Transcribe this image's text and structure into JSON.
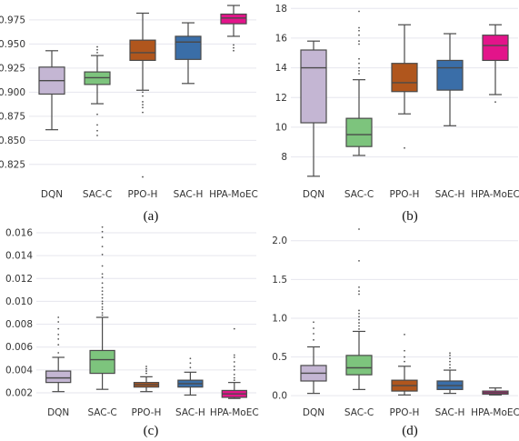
{
  "chart_data": [
    {
      "type": "box",
      "panel_label": "(a)",
      "categories": [
        "DQN",
        "SAC-C",
        "PPO-H",
        "SAC-H",
        "HPA-MoEC"
      ],
      "colors": [
        "#c4b6d3",
        "#7dc47d",
        "#b0561d",
        "#3a6ea8",
        "#e3148a"
      ],
      "ylim": [
        0.805,
        0.99
      ],
      "yticks": [
        0.825,
        0.85,
        0.875,
        0.9,
        0.925,
        0.95,
        0.975
      ],
      "ytick_labels": [
        "0.825",
        "0.850",
        "0.875",
        "0.900",
        "0.925",
        "0.950",
        "0.975"
      ],
      "grid": true,
      "boxes": [
        {
          "min": 0.861,
          "q1": 0.898,
          "median": 0.912,
          "q3": 0.926,
          "max": 0.943,
          "outliers": []
        },
        {
          "min": 0.888,
          "q1": 0.908,
          "median": 0.915,
          "q3": 0.921,
          "max": 0.938,
          "outliers": [
            0.855,
            0.86,
            0.866,
            0.877,
            0.941,
            0.944,
            0.947
          ]
        },
        {
          "min": 0.902,
          "q1": 0.933,
          "median": 0.941,
          "q3": 0.954,
          "max": 0.982,
          "outliers": [
            0.812,
            0.879,
            0.884,
            0.887,
            0.89,
            0.896,
            0.9
          ]
        },
        {
          "min": 0.909,
          "q1": 0.934,
          "median": 0.952,
          "q3": 0.958,
          "max": 0.972,
          "outliers": []
        },
        {
          "min": 0.958,
          "q1": 0.971,
          "median": 0.977,
          "q3": 0.981,
          "max": 0.99,
          "outliers": [
            0.943,
            0.946,
            0.949
          ]
        }
      ]
    },
    {
      "type": "box",
      "panel_label": "(b)",
      "categories": [
        "DQN",
        "SAC-C",
        "PPO-H",
        "SAC-H",
        "HPA-MoEC"
      ],
      "colors": [
        "#c4b6d3",
        "#7dc47d",
        "#b0561d",
        "#3a6ea8",
        "#e3148a"
      ],
      "ylim": [
        6.2,
        18.2
      ],
      "yticks": [
        8,
        10,
        12,
        14,
        16,
        18
      ],
      "ytick_labels": [
        "8",
        "10",
        "12",
        "14",
        "16",
        "18"
      ],
      "grid": true,
      "boxes": [
        {
          "min": 6.7,
          "q1": 10.3,
          "median": 14.0,
          "q3": 15.2,
          "max": 15.8,
          "outliers": []
        },
        {
          "min": 8.1,
          "q1": 8.7,
          "median": 9.5,
          "q3": 10.6,
          "max": 13.2,
          "outliers": [
            13.6,
            13.8,
            14.0,
            14.3,
            14.6,
            15.6,
            15.8,
            16.2,
            16.5,
            16.7,
            17.8
          ]
        },
        {
          "min": 10.9,
          "q1": 12.4,
          "median": 13.0,
          "q3": 14.3,
          "max": 16.9,
          "outliers": [
            8.6
          ]
        },
        {
          "min": 10.1,
          "q1": 12.5,
          "median": 14.0,
          "q3": 14.5,
          "max": 16.3,
          "outliers": []
        },
        {
          "min": 12.2,
          "q1": 14.5,
          "median": 15.5,
          "q3": 16.2,
          "max": 16.9,
          "outliers": [
            11.7
          ]
        }
      ]
    },
    {
      "type": "box",
      "panel_label": "(c)",
      "categories": [
        "DQN",
        "SAC-C",
        "PPO-H",
        "SAC-H",
        "HPA-MoEC"
      ],
      "colors": [
        "#c4b6d3",
        "#7dc47d",
        "#b0561d",
        "#3a6ea8",
        "#e3148a"
      ],
      "ylim": [
        0.0012,
        0.0168
      ],
      "yticks": [
        0.002,
        0.004,
        0.006,
        0.008,
        0.01,
        0.012,
        0.014,
        0.016
      ],
      "ytick_labels": [
        "0.002",
        "0.004",
        "0.006",
        "0.008",
        "0.010",
        "0.012",
        "0.014",
        "0.016"
      ],
      "grid": true,
      "boxes": [
        {
          "min": 0.0021,
          "q1": 0.0029,
          "median": 0.0033,
          "q3": 0.0039,
          "max": 0.0051,
          "outliers": [
            0.0055,
            0.0062,
            0.0067,
            0.0071,
            0.0076,
            0.0082,
            0.0086
          ]
        },
        {
          "min": 0.0023,
          "q1": 0.0037,
          "median": 0.0049,
          "q3": 0.0057,
          "max": 0.0086,
          "outliers": [
            0.0088,
            0.009,
            0.0093,
            0.0095,
            0.0098,
            0.01,
            0.0103,
            0.0106,
            0.0109,
            0.0112,
            0.0116,
            0.0121,
            0.0124,
            0.0131,
            0.0141,
            0.0148,
            0.0156,
            0.0161,
            0.0165
          ]
        },
        {
          "min": 0.0021,
          "q1": 0.0025,
          "median": 0.0027,
          "q3": 0.0029,
          "max": 0.0034,
          "outliers": [
            0.0037,
            0.0039,
            0.0041,
            0.0043
          ]
        },
        {
          "min": 0.0018,
          "q1": 0.0025,
          "median": 0.0028,
          "q3": 0.0031,
          "max": 0.0038,
          "outliers": [
            0.0042,
            0.0046,
            0.005
          ]
        },
        {
          "min": 0.0015,
          "q1": 0.0016,
          "median": 0.0019,
          "q3": 0.0022,
          "max": 0.0029,
          "outliers": [
            0.0031,
            0.0033,
            0.0036,
            0.004,
            0.0043,
            0.0047,
            0.0051,
            0.0053,
            0.0076
          ]
        }
      ]
    },
    {
      "type": "box",
      "panel_label": "(d)",
      "categories": [
        "DQN",
        "SAC-C",
        "PPO-H",
        "SAC-H",
        "HPA-MoEC"
      ],
      "colors": [
        "#c4b6d3",
        "#7dc47d",
        "#b0561d",
        "#3a6ea8",
        "#e3148a"
      ],
      "ylim": [
        -0.08,
        2.22
      ],
      "yticks": [
        0,
        0.5,
        1,
        1.5,
        2
      ],
      "ytick_labels": [
        "0.0",
        "0.5",
        "1.0",
        "1.5",
        "2.0"
      ],
      "grid": true,
      "boxes": [
        {
          "min": 0.03,
          "q1": 0.19,
          "median": 0.29,
          "q3": 0.39,
          "max": 0.63,
          "outliers": [
            0.72,
            0.8,
            0.87,
            0.95
          ]
        },
        {
          "min": 0.08,
          "q1": 0.27,
          "median": 0.36,
          "q3": 0.52,
          "max": 0.83,
          "outliers": [
            0.86,
            0.9,
            0.94,
            0.98,
            1.02,
            1.06,
            1.1,
            1.31,
            1.35,
            1.4,
            1.74,
            2.15
          ]
        },
        {
          "min": 0.01,
          "q1": 0.06,
          "median": 0.13,
          "q3": 0.2,
          "max": 0.38,
          "outliers": [
            0.44,
            0.5,
            0.58,
            0.79
          ]
        },
        {
          "min": 0.03,
          "q1": 0.08,
          "median": 0.13,
          "q3": 0.19,
          "max": 0.33,
          "outliers": [
            0.36,
            0.4,
            0.44,
            0.48,
            0.52,
            0.55
          ]
        },
        {
          "min": 0.01,
          "q1": 0.02,
          "median": 0.04,
          "q3": 0.06,
          "max": 0.1,
          "outliers": []
        }
      ]
    }
  ]
}
